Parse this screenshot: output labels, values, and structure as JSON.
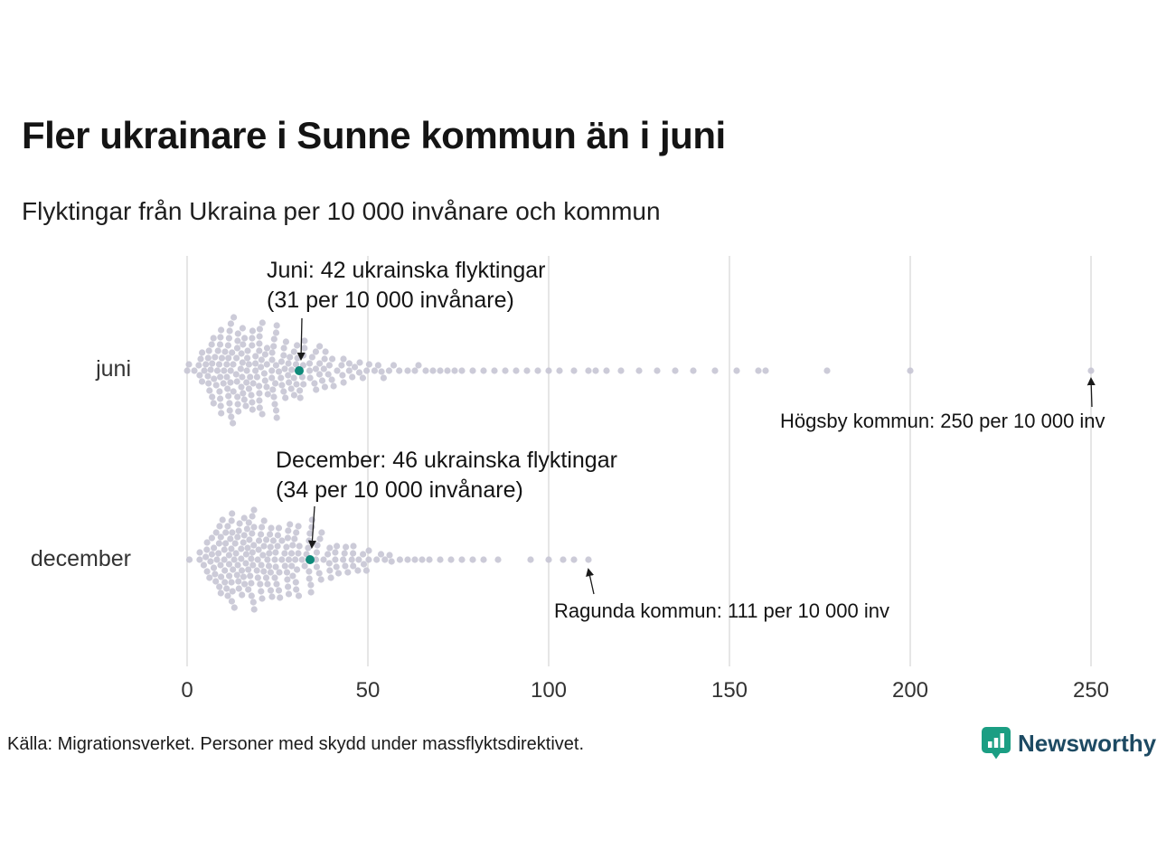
{
  "source": "Källa: Migrationsverket. Personer med skydd under massflyktsdirektivet.",
  "brand": {
    "name": "Newsworthy",
    "icon_color": "#1b9e83",
    "text_color": "#1d4a63"
  },
  "colors": {
    "dot": "#c7c5d4",
    "highlight": "#0e8a7a",
    "gridline": "#cdcdcd",
    "arrow": "#1a1a1a",
    "text": "#1a1a1a"
  },
  "chart_data": {
    "type": "beeswarm",
    "title": "Fler ukrainare i Sunne kommun än i juni",
    "subtitle": "Flyktingar från Ukraina per 10 000 invånare och kommun",
    "xlim": [
      0,
      250
    ],
    "x_ticks": [
      0,
      50,
      100,
      150,
      200,
      250
    ],
    "grid": true,
    "rows": [
      {
        "label": "juni",
        "bins": [
          [
            1,
            2
          ],
          [
            3,
            4
          ],
          [
            5,
            7
          ],
          [
            7,
            10
          ],
          [
            9,
            13
          ],
          [
            11,
            14
          ],
          [
            13,
            14
          ],
          [
            15,
            13
          ],
          [
            17,
            12
          ],
          [
            19,
            12
          ],
          [
            21,
            11
          ],
          [
            23,
            10
          ],
          [
            25,
            10
          ],
          [
            27,
            9
          ],
          [
            29,
            8
          ],
          [
            31,
            8
          ],
          [
            33,
            7
          ],
          [
            35,
            6
          ],
          [
            37,
            5
          ],
          [
            39,
            5
          ],
          [
            41,
            4
          ],
          [
            43,
            4
          ],
          [
            45,
            3
          ],
          [
            47,
            3
          ],
          [
            49,
            2
          ],
          [
            51,
            2
          ],
          [
            53,
            2
          ],
          [
            55,
            2
          ],
          [
            57,
            1
          ],
          [
            59,
            1
          ]
        ],
        "tail": [
          61,
          63,
          64,
          66,
          68,
          70,
          72,
          74,
          76,
          79,
          82,
          85,
          88,
          91,
          94,
          97,
          100,
          103,
          107,
          111,
          113,
          116,
          120,
          125,
          130,
          135,
          140,
          146,
          152,
          158,
          160,
          177,
          200,
          250
        ],
        "highlight": {
          "value": 31,
          "annotation_line1": "Juni: 42 ukrainska flyktingar",
          "annotation_line2": "(31 per 10 000 invånare)"
        },
        "outlier": {
          "value": 250,
          "annotation": "Högsby kommun: 250 per 10 000 inv"
        }
      },
      {
        "label": "december",
        "bins": [
          [
            1,
            1
          ],
          [
            3,
            2
          ],
          [
            5,
            5
          ],
          [
            7,
            8
          ],
          [
            9,
            11
          ],
          [
            11,
            13
          ],
          [
            13,
            14
          ],
          [
            15,
            14
          ],
          [
            17,
            13
          ],
          [
            19,
            13
          ],
          [
            21,
            12
          ],
          [
            23,
            11
          ],
          [
            25,
            11
          ],
          [
            27,
            10
          ],
          [
            29,
            9
          ],
          [
            31,
            9
          ],
          [
            33,
            8
          ],
          [
            35,
            7
          ],
          [
            37,
            6
          ],
          [
            39,
            5
          ],
          [
            41,
            5
          ],
          [
            43,
            4
          ],
          [
            45,
            4
          ],
          [
            47,
            3
          ],
          [
            49,
            3
          ],
          [
            51,
            2
          ],
          [
            53,
            2
          ],
          [
            55,
            2
          ],
          [
            57,
            1
          ],
          [
            59,
            1
          ]
        ],
        "tail": [
          61,
          63,
          65,
          67,
          70,
          73,
          76,
          79,
          82,
          86,
          95,
          100,
          104,
          107,
          111
        ],
        "highlight": {
          "value": 34,
          "annotation_line1": "December: 46 ukrainska flyktingar",
          "annotation_line2": "(34 per 10 000 invånare)"
        },
        "outlier": {
          "value": 111,
          "annotation": "Ragunda kommun: 111 per 10 000 inv"
        }
      }
    ]
  }
}
